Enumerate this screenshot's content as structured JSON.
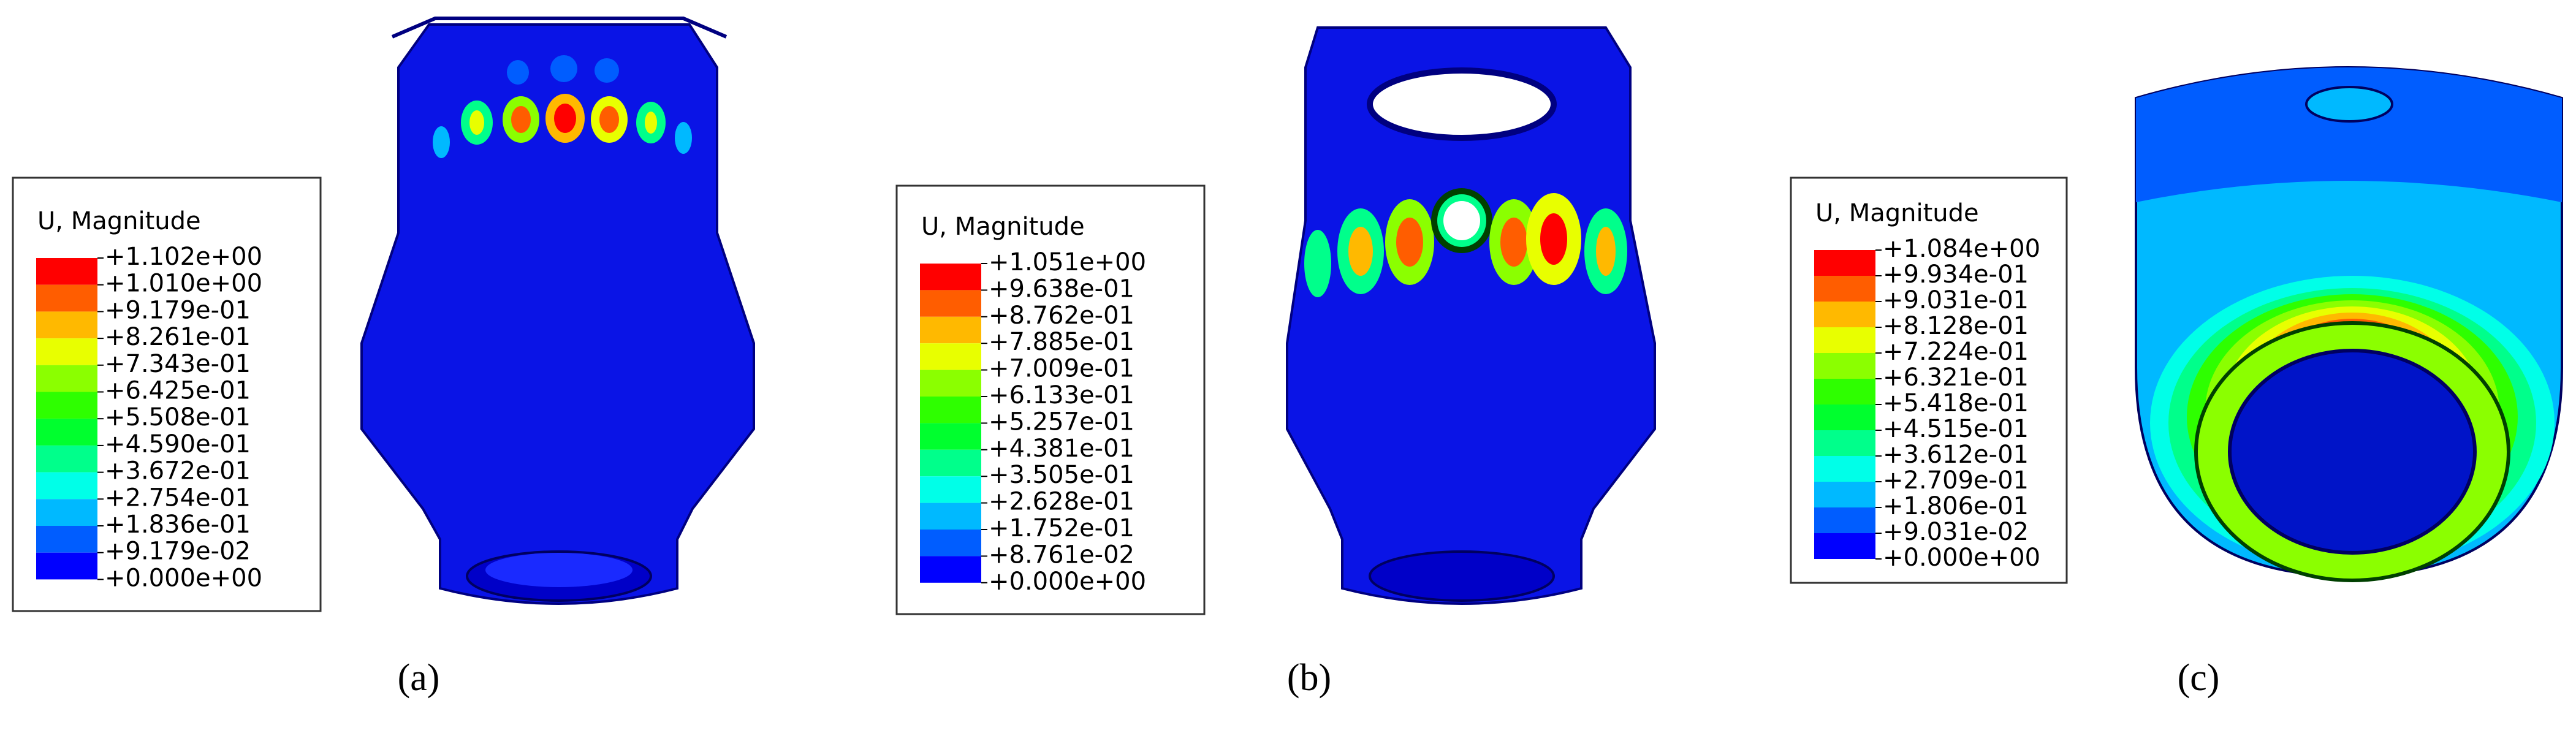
{
  "contour_colors": [
    "#0000ff",
    "#005dff",
    "#00b9ff",
    "#00ffe8",
    "#00ff8b",
    "#00ff2e",
    "#2eff00",
    "#8bff00",
    "#e8ff00",
    "#ffb900",
    "#ff5d00",
    "#ff0000"
  ],
  "panels": [
    {
      "legend": {
        "title": "U, Magnitude",
        "labels": [
          "+1.102e+00",
          "+1.010e+00",
          "+9.179e-01",
          "+8.261e-01",
          "+7.343e-01",
          "+6.425e-01",
          "+5.508e-01",
          "+4.590e-01",
          "+3.672e-01",
          "+2.754e-01",
          "+1.836e-01",
          "+9.179e-02",
          "+0.000e+00"
        ]
      },
      "caption": "(a)"
    },
    {
      "legend": {
        "title": "U, Magnitude",
        "labels": [
          "+1.051e+00",
          "+9.638e-01",
          "+8.762e-01",
          "+7.885e-01",
          "+7.009e-01",
          "+6.133e-01",
          "+5.257e-01",
          "+4.381e-01",
          "+3.505e-01",
          "+2.628e-01",
          "+1.752e-01",
          "+8.761e-02",
          "+0.000e+00"
        ]
      },
      "caption": "(b)"
    },
    {
      "legend": {
        "title": "U, Magnitude",
        "labels": [
          "+1.084e+00",
          "+9.934e-01",
          "+9.031e-01",
          "+8.128e-01",
          "+7.224e-01",
          "+6.321e-01",
          "+5.418e-01",
          "+4.515e-01",
          "+3.612e-01",
          "+2.709e-01",
          "+1.806e-01",
          "+9.031e-02",
          "+0.000e+00"
        ]
      },
      "caption": "(c)"
    }
  ]
}
